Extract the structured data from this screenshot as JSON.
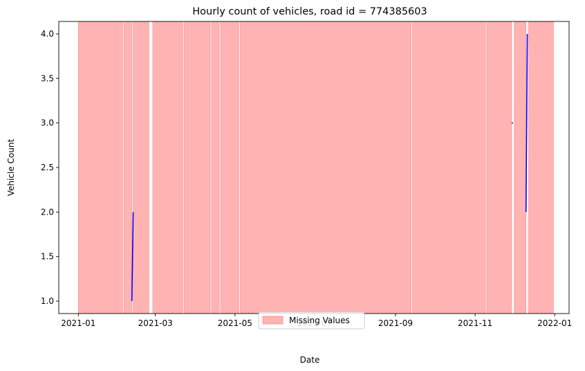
{
  "chart_data": {
    "type": "line",
    "title": "Hourly count of vehicles, road id = 774385603",
    "xlabel": "Date",
    "ylabel": "Vehicle Count",
    "xlim": [
      "2020-12-17",
      "2022-01-12"
    ],
    "ylim": [
      0.86,
      4.14
    ],
    "x_ticks": [
      "2021-01",
      "2021-03",
      "2021-05",
      "2021-07",
      "2021-09",
      "2021-11",
      "2022-01"
    ],
    "y_ticks": [
      "1.0",
      "1.5",
      "2.0",
      "2.5",
      "3.0",
      "3.5",
      "4.0"
    ],
    "grid": false,
    "legend_placement": "bottom-center",
    "legend_entries": [
      "Missing Values"
    ],
    "colors": {
      "line": "#0000ff",
      "missing_fill": "#ffb3b3",
      "missing_edge": "#ff9999"
    },
    "series": [
      {
        "style": "line",
        "segments": [
          [
            {
              "x": "2021-02-11T00:00",
              "y": 1
            },
            {
              "x": "2021-02-12T00:00",
              "y": 2
            }
          ],
          [
            {
              "x": "2021-11-29T00:00",
              "y": 3
            },
            {
              "x": "2021-11-30T00:00",
              "y": 3
            }
          ],
          [
            {
              "x": "2021-12-10T00:00",
              "y": 2
            },
            {
              "x": "2021-12-11T00:00",
              "y": 4
            }
          ]
        ]
      }
    ],
    "missing_ranges": [
      [
        "2021-01-01",
        "2021-02-04"
      ],
      [
        "2021-02-05",
        "2021-02-11"
      ],
      [
        "2021-02-12",
        "2021-02-24"
      ],
      [
        "2021-02-27",
        "2021-03-22"
      ],
      [
        "2021-03-23",
        "2021-04-12"
      ],
      [
        "2021-04-13",
        "2021-04-19"
      ],
      [
        "2021-04-20",
        "2021-05-04"
      ],
      [
        "2021-05-05",
        "2021-09-13"
      ],
      [
        "2021-09-14",
        "2021-11-09"
      ],
      [
        "2021-11-10",
        "2021-11-29"
      ],
      [
        "2021-12-01",
        "2021-12-10"
      ],
      [
        "2021-12-12",
        "2021-12-31"
      ]
    ]
  }
}
